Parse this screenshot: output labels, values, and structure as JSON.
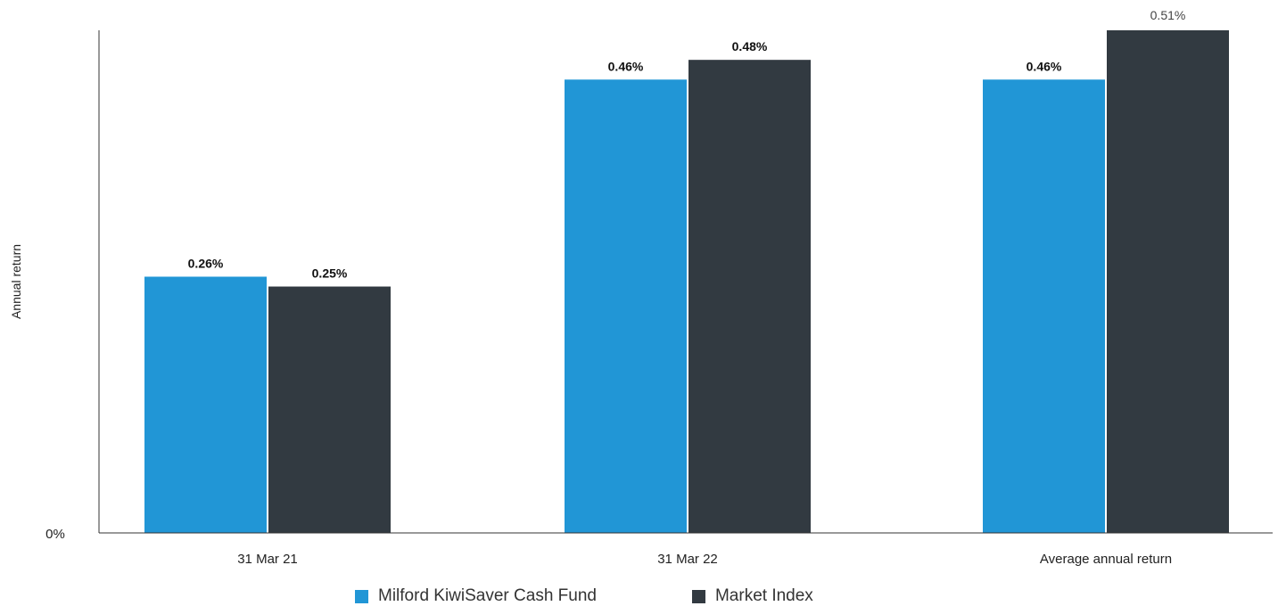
{
  "colors": {
    "fund": "#2196d6",
    "index": "#323a41",
    "axis": "#333333",
    "text": "#222222"
  },
  "chart_data": {
    "type": "bar",
    "title": "",
    "xlabel": "",
    "ylabel": "Annual return",
    "ytick_labels": [
      "0%"
    ],
    "ylim": [
      0,
      0.51
    ],
    "grid": false,
    "legend_position": "bottom",
    "categories": [
      "31 Mar 21",
      "31 Mar 22",
      "Average annual return"
    ],
    "series": [
      {
        "name": "Milford KiwiSaver Cash Fund",
        "values": [
          0.26,
          0.46,
          0.46
        ],
        "labels": [
          "0.26%",
          "0.46%",
          "0.46%"
        ]
      },
      {
        "name": "Market Index",
        "values": [
          0.25,
          0.48,
          0.51
        ],
        "labels": [
          "0.25%",
          "0.48%",
          "0.51%"
        ]
      }
    ]
  }
}
